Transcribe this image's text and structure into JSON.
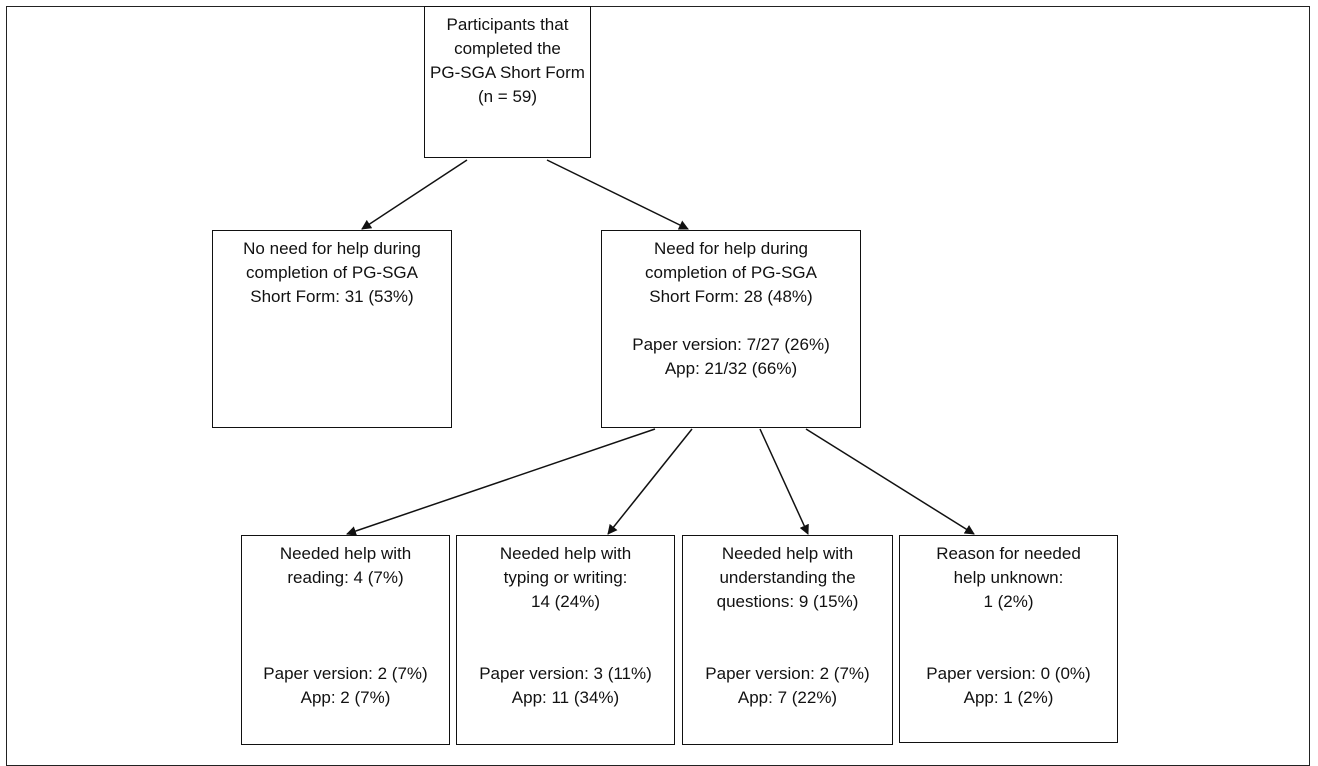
{
  "root": {
    "lines": [
      "Participants that",
      "completed the",
      "PG-SGA Short Form",
      "(n = 59)"
    ]
  },
  "no_need": {
    "lines": [
      "No need for help during",
      "completion of PG-SGA",
      "Short Form: 31 (53%)"
    ]
  },
  "need": {
    "lines": [
      "Need for help during",
      "completion of PG-SGA",
      "Short Form: 28 (48%)"
    ],
    "paper": "Paper version: 7/27 (26%)",
    "app": "App: 21/32 (66%)"
  },
  "reading": {
    "lines": [
      "Needed help with",
      "reading: 4 (7%)"
    ],
    "paper": "Paper version: 2 (7%)",
    "app": "App: 2 (7%)"
  },
  "typing": {
    "lines": [
      "Needed help with",
      "typing or writing:",
      "14 (24%)"
    ],
    "paper": "Paper version: 3 (11%)",
    "app": "App: 11 (34%)"
  },
  "understanding": {
    "lines": [
      "Needed help with",
      "understanding the",
      "questions: 9 (15%)"
    ],
    "paper": "Paper version: 2 (7%)",
    "app": "App: 7 (22%)"
  },
  "unknown": {
    "lines": [
      "Reason for needed",
      "help unknown:",
      "1 (2%)"
    ],
    "paper": "Paper version: 0 (0%)",
    "app": "App: 1 (2%)"
  }
}
